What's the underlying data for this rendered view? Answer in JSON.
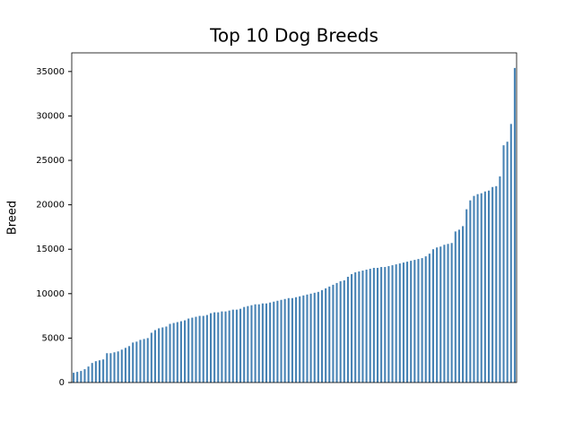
{
  "chart_data": {
    "type": "bar",
    "title": "Top 10 Dog Breeds",
    "y_label": "Breed",
    "categories": [
      null,
      null,
      null,
      null,
      null,
      null,
      null,
      null,
      null,
      null,
      null,
      null,
      null,
      null,
      null,
      null,
      null,
      null,
      null,
      null,
      null,
      null,
      null,
      null,
      null,
      null,
      null,
      null,
      null,
      null,
      null,
      null,
      null,
      null,
      null,
      null,
      null,
      null,
      null,
      null,
      null,
      null,
      null,
      null,
      null,
      null,
      null,
      null,
      null,
      null,
      null,
      null,
      null,
      null,
      null,
      null,
      null,
      null,
      null,
      null,
      null,
      null,
      null,
      null,
      null,
      null,
      null,
      null,
      null,
      null,
      null,
      null,
      null,
      null,
      null,
      null,
      null,
      null,
      null,
      null,
      null,
      null,
      null,
      null,
      null,
      null,
      null,
      null,
      null,
      null,
      null,
      null,
      null,
      null,
      null,
      null,
      null,
      null,
      null,
      null,
      null,
      null,
      null,
      null,
      null,
      null,
      null,
      null,
      null,
      null,
      null,
      null,
      null,
      null,
      null,
      null,
      null,
      null,
      null,
      null
    ],
    "values": [
      1100,
      1200,
      1300,
      1500,
      1800,
      2200,
      2400,
      2500,
      2600,
      3300,
      3300,
      3400,
      3500,
      3700,
      3900,
      4100,
      4500,
      4600,
      4800,
      4900,
      5000,
      5600,
      5900,
      6100,
      6200,
      6300,
      6600,
      6700,
      6800,
      6900,
      7000,
      7200,
      7300,
      7400,
      7500,
      7500,
      7600,
      7800,
      7900,
      7900,
      8000,
      8000,
      8100,
      8200,
      8200,
      8300,
      8500,
      8600,
      8700,
      8800,
      8800,
      8900,
      8900,
      9000,
      9100,
      9200,
      9300,
      9400,
      9500,
      9500,
      9600,
      9700,
      9800,
      9900,
      10000,
      10100,
      10200,
      10400,
      10600,
      10800,
      11000,
      11200,
      11400,
      11500,
      11900,
      12200,
      12400,
      12500,
      12600,
      12700,
      12800,
      12900,
      12900,
      13000,
      13000,
      13100,
      13200,
      13300,
      13400,
      13500,
      13600,
      13700,
      13800,
      13900,
      14000,
      14200,
      14500,
      15000,
      15200,
      15300,
      15500,
      15600,
      15700,
      17000,
      17200,
      17600,
      19500,
      20500,
      21000,
      21200,
      21300,
      21500,
      21600,
      22000,
      22100,
      23200,
      26700,
      27100,
      29100,
      35400
    ],
    "color": "#4682b4",
    "ylim": [
      0,
      37100
    ],
    "yticks": [
      0,
      5000,
      10000,
      15000,
      20000,
      25000,
      30000,
      35000
    ],
    "grid": false
  }
}
